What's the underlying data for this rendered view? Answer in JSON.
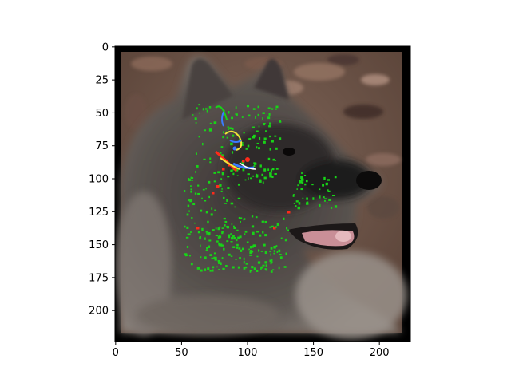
{
  "axes": {
    "x_ticks": [
      "0",
      "50",
      "100",
      "150",
      "200"
    ],
    "y_ticks": [
      "0",
      "25",
      "50",
      "75",
      "100",
      "125",
      "150",
      "175",
      "200"
    ],
    "xlim": [
      -0.5,
      223.5
    ],
    "ylim": [
      223.5,
      -0.5
    ],
    "x_tick_values": [
      0,
      50,
      100,
      150,
      200
    ],
    "y_tick_values": [
      0,
      25,
      50,
      75,
      100,
      125,
      150,
      175,
      200
    ]
  },
  "image": {
    "subject": "dog head in profile (spitz-type, grey and black fur) with mouth open and pink tongue, against brown leaf background",
    "overlay": "saliency highlights: green speckles over ear, cheek and neck region; red, yellow and blue streaks around the eye area",
    "colors": {
      "frame": "#000000",
      "background_leaves": "#6e5648",
      "fur_dark": "#2a2626",
      "fur_light": "#8b837c",
      "tongue": "#c98f97",
      "saliency_green": "#18d418",
      "saliency_red": "#ff2a1a",
      "saliency_blue": "#3a7bff",
      "saliency_yellow": "#f2e23a"
    }
  }
}
